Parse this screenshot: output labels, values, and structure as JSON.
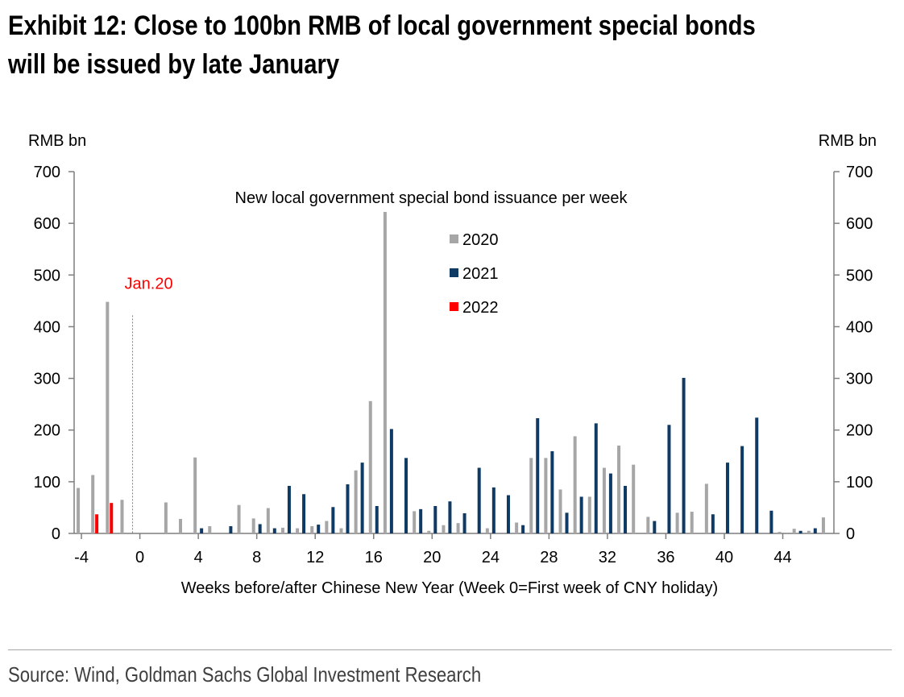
{
  "title_lines": [
    "Exhibit 12: Close to 100bn RMB of local government special bonds",
    "will be issued by late January"
  ],
  "source": "Source: Wind, Goldman Sachs Global Investment Research",
  "colors": {
    "s2020": "#a6a6a6",
    "s2021": "#0f3a63",
    "s2022": "#ff0000",
    "axis": "#7f7f7f",
    "marker": "#7f7f7f",
    "marker_text": "#ff0000"
  },
  "chart_data": {
    "type": "bar",
    "title": "New local government special bond issuance per week",
    "xlabel": "Weeks before/after Chinese New Year (Week 0=First week of CNY holiday)",
    "ylabel_left": "RMB bn",
    "ylabel_right": "RMB bn",
    "ylim": [
      0,
      700
    ],
    "yticks": [
      0,
      100,
      200,
      300,
      400,
      500,
      600,
      700
    ],
    "xlim": [
      -4.5,
      47.5
    ],
    "xticks": [
      -4,
      0,
      4,
      8,
      12,
      16,
      20,
      24,
      28,
      32,
      36,
      40,
      44
    ],
    "legend": [
      "2020",
      "2021",
      "2022"
    ],
    "legend_position": "top-center",
    "annotation": {
      "text": "Jan.20",
      "week": -0.5,
      "value": 422
    },
    "series": [
      {
        "name": "2020",
        "points": [
          [
            -4,
            88
          ],
          [
            -3,
            113
          ],
          [
            -2,
            448
          ],
          [
            -1,
            65
          ],
          [
            2,
            60
          ],
          [
            3,
            28
          ],
          [
            4,
            147
          ],
          [
            5,
            14
          ],
          [
            7,
            55
          ],
          [
            8,
            29
          ],
          [
            9,
            49
          ],
          [
            10,
            11
          ],
          [
            11,
            10
          ],
          [
            12,
            14
          ],
          [
            13,
            24
          ],
          [
            14,
            10
          ],
          [
            15,
            122
          ],
          [
            16,
            256
          ],
          [
            17,
            622
          ],
          [
            19,
            43
          ],
          [
            20,
            5
          ],
          [
            21,
            16
          ],
          [
            22,
            20
          ],
          [
            24,
            10
          ],
          [
            26,
            21
          ],
          [
            27,
            146
          ],
          [
            28,
            146
          ],
          [
            29,
            85
          ],
          [
            30,
            188
          ],
          [
            31,
            71
          ],
          [
            32,
            127
          ],
          [
            33,
            170
          ],
          [
            34,
            133
          ],
          [
            35,
            32
          ],
          [
            37,
            40
          ],
          [
            38,
            42
          ],
          [
            39,
            96
          ],
          [
            44,
            3
          ],
          [
            45,
            9
          ],
          [
            46,
            5
          ],
          [
            47,
            31
          ]
        ]
      },
      {
        "name": "2021",
        "points": [
          [
            4,
            10
          ],
          [
            6,
            14
          ],
          [
            8,
            18
          ],
          [
            9,
            10
          ],
          [
            10,
            92
          ],
          [
            11,
            76
          ],
          [
            12,
            17
          ],
          [
            13,
            51
          ],
          [
            14,
            95
          ],
          [
            15,
            137
          ],
          [
            16,
            53
          ],
          [
            17,
            202
          ],
          [
            18,
            146
          ],
          [
            19,
            47
          ],
          [
            20,
            53
          ],
          [
            21,
            62
          ],
          [
            22,
            39
          ],
          [
            23,
            127
          ],
          [
            24,
            89
          ],
          [
            25,
            74
          ],
          [
            26,
            16
          ],
          [
            27,
            223
          ],
          [
            28,
            159
          ],
          [
            29,
            40
          ],
          [
            30,
            71
          ],
          [
            31,
            213
          ],
          [
            32,
            116
          ],
          [
            33,
            92
          ],
          [
            35,
            24
          ],
          [
            36,
            210
          ],
          [
            37,
            301
          ],
          [
            39,
            37
          ],
          [
            40,
            137
          ],
          [
            41,
            169
          ],
          [
            42,
            224
          ],
          [
            43,
            44
          ],
          [
            45,
            5
          ],
          [
            46,
            10
          ]
        ]
      },
      {
        "name": "2022",
        "points": [
          [
            -3,
            37
          ],
          [
            -2,
            59
          ]
        ]
      }
    ]
  }
}
